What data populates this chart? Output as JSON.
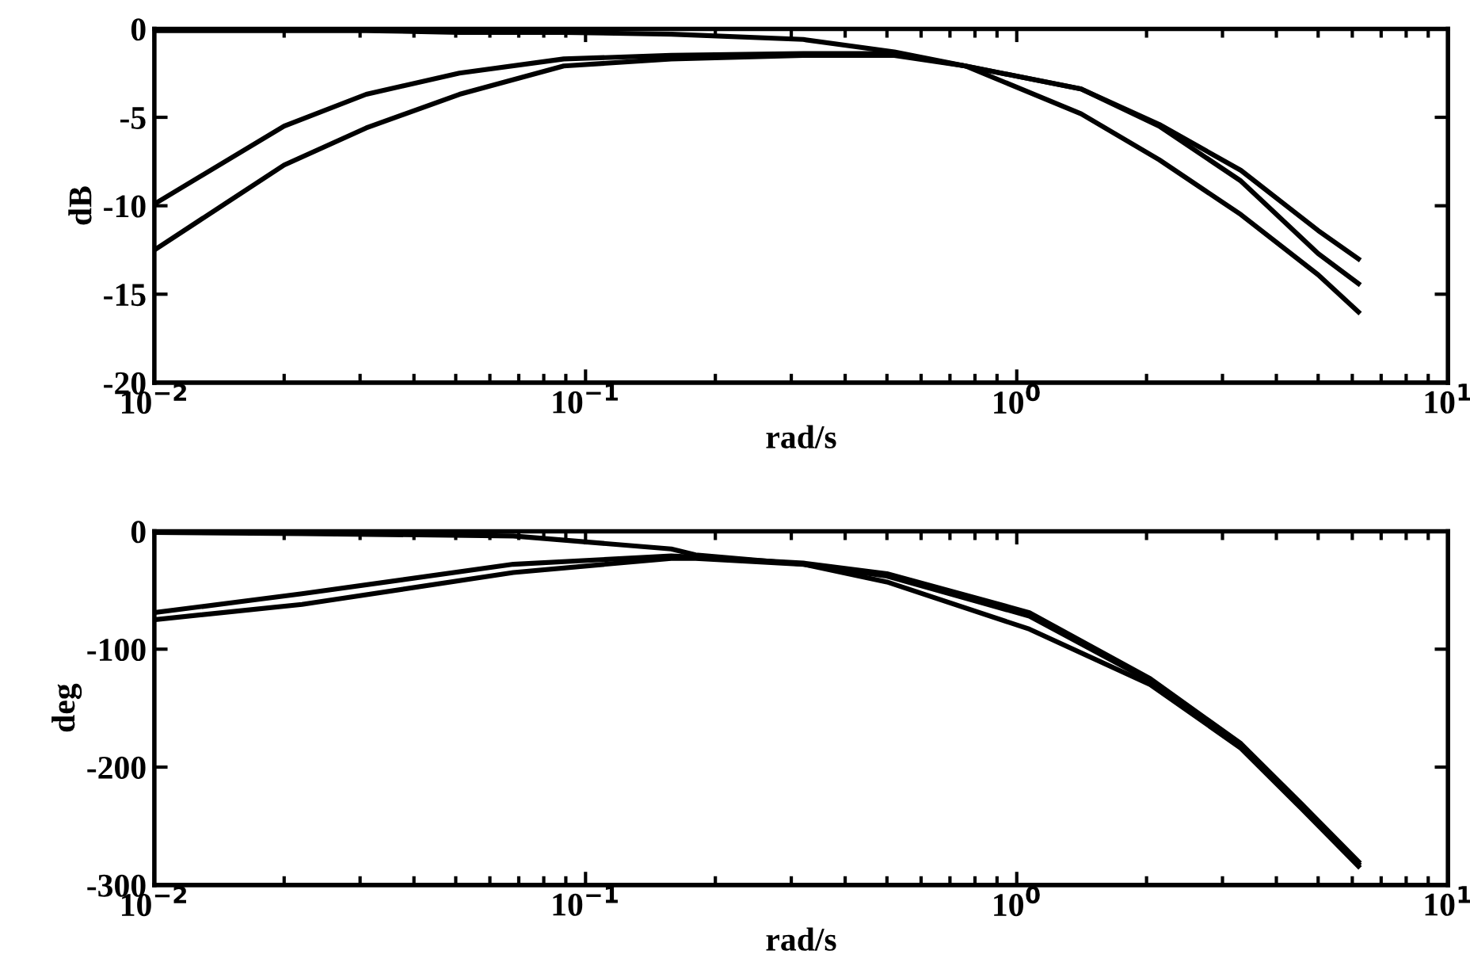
{
  "chart_data": [
    {
      "type": "line",
      "xlabel": "rad/s",
      "ylabel": "dB",
      "log": "x",
      "grid": false,
      "legend": false,
      "marker": "none",
      "line_style": "solid",
      "x": [
        0.01,
        0.02,
        0.031,
        0.051,
        0.089,
        0.158,
        0.32,
        0.52,
        0.76,
        1.41,
        2.14,
        3.31,
        5.0,
        6.2
      ],
      "series": [
        {
          "color": "#000000",
          "values": [
            -9.9,
            -5.5,
            -3.7,
            -2.5,
            -1.7,
            -1.5,
            -1.4,
            -1.4,
            -2.1,
            -3.4,
            -5.4,
            -8.0,
            -11.4,
            -13.0
          ]
        },
        {
          "color": "#000000",
          "values": [
            -12.5,
            -7.7,
            -5.6,
            -3.7,
            -2.1,
            -1.7,
            -1.5,
            -1.5,
            -2.1,
            -3.4,
            -5.5,
            -8.6,
            -12.7,
            -14.4
          ]
        },
        {
          "color": "#000000",
          "values": [
            -0.1,
            -0.1,
            -0.1,
            -0.2,
            -0.2,
            -0.3,
            -0.6,
            -1.3,
            -2.1,
            -4.8,
            -7.4,
            -10.5,
            -13.9,
            -16.0
          ]
        }
      ],
      "xlim": [
        0.01,
        10
      ],
      "xticks": [
        {
          "value": 0.01,
          "label": "10$^{−2}$"
        },
        {
          "value": 0.1,
          "label": "10$^{−1}$"
        },
        {
          "value": 1,
          "label": "10$^{0}$"
        },
        {
          "value": 10,
          "label": "10$^{1}$"
        }
      ],
      "ylim": [
        -20,
        0
      ],
      "yticks": [
        0,
        -5,
        -10,
        -15,
        -20
      ]
    },
    {
      "type": "line",
      "xlabel": "rad/s",
      "ylabel": "deg",
      "log": "x",
      "grid": false,
      "legend": false,
      "marker": "none",
      "line_style": "solid",
      "x": [
        0.01,
        0.022,
        0.068,
        0.158,
        0.18,
        0.32,
        0.5,
        1.07,
        2.04,
        3.31,
        4.57,
        6.2
      ],
      "series": [
        {
          "color": "#000000",
          "values": [
            -69,
            -53,
            -28,
            -21,
            -22,
            -27,
            -36,
            -69,
            -125,
            -180,
            -231,
            -280
          ]
        },
        {
          "color": "#000000",
          "values": [
            -75,
            -62,
            -35,
            -23,
            -23,
            -28,
            -38,
            -72,
            -127,
            -182,
            -233,
            -282
          ]
        },
        {
          "color": "#000000",
          "values": [
            -1,
            -2,
            -4,
            -15,
            -20,
            -28,
            -43,
            -83,
            -130,
            -184,
            -235,
            -284
          ]
        }
      ],
      "xlim": [
        0.01,
        10
      ],
      "xticks": [
        {
          "value": 0.01,
          "label": "10$^{−2}$"
        },
        {
          "value": 0.1,
          "label": "10$^{−1}$"
        },
        {
          "value": 1,
          "label": "10$^{0}$"
        },
        {
          "value": 10,
          "label": "10$^{1}$"
        }
      ],
      "ylim": [
        -300,
        0
      ],
      "yticks": [
        0,
        -100,
        -200,
        -300
      ]
    }
  ]
}
